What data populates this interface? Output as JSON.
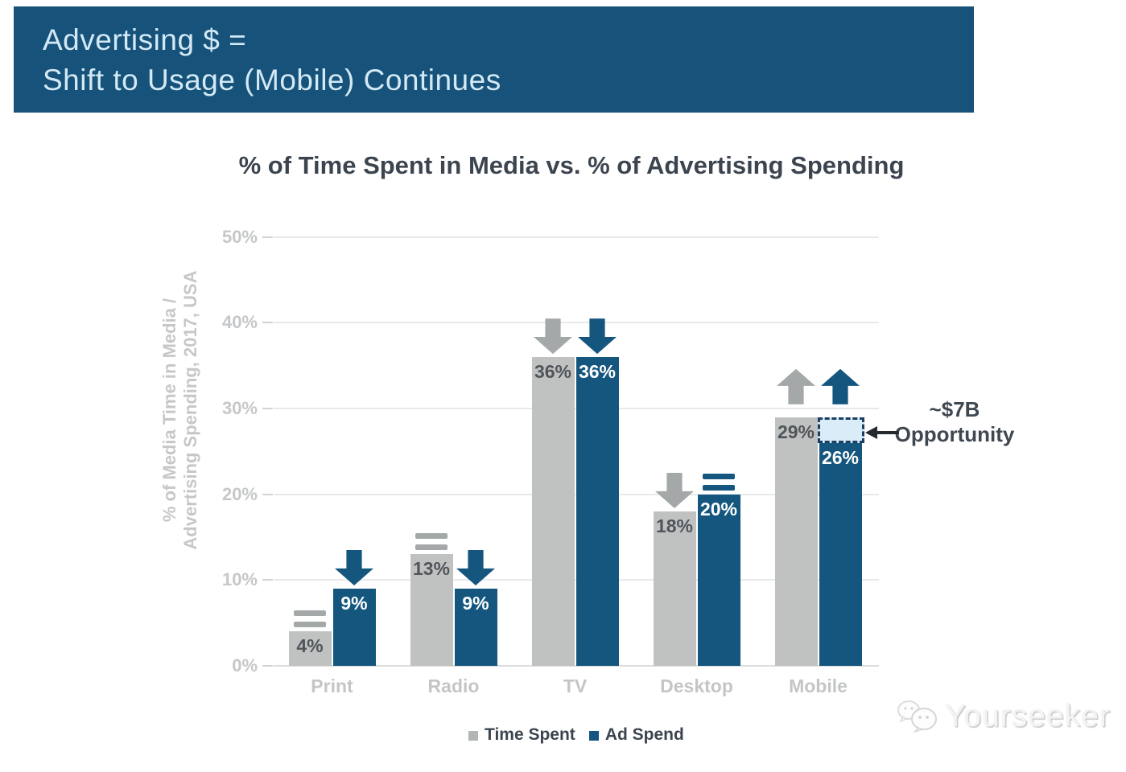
{
  "banner": {
    "line1": "Advertising $ =",
    "line2": "Shift to Usage (Mobile) Continues",
    "bg_color": "#16527a",
    "text_color": "#d3e9f5"
  },
  "chart_data": {
    "type": "bar",
    "title": "% of Time Spent in Media vs. % of Advertising Spending",
    "ylabel_line1": "% of Media Time in Media /",
    "ylabel_line2": "Advertising Spending, 2017, USA",
    "ylim": [
      0,
      50
    ],
    "y_ticks": [
      0,
      10,
      20,
      30,
      40,
      50
    ],
    "y_tick_suffix": "%",
    "grid": "horizontal-only",
    "legend_position": "bottom",
    "categories": [
      "Print",
      "Radio",
      "TV",
      "Desktop",
      "Mobile"
    ],
    "series": [
      {
        "name": "Time Spent",
        "color": "#c0c2c2",
        "label_color": "#50555a",
        "indicator_color": "#a5a8a8",
        "values": [
          4,
          13,
          36,
          18,
          29
        ],
        "value_labels": [
          "4%",
          "13%",
          "36%",
          "18%",
          "29%"
        ],
        "trends": [
          "flat",
          "flat",
          "down",
          "down",
          "up"
        ]
      },
      {
        "name": "Ad Spend",
        "color": "#15567e",
        "label_color": "#ffffff",
        "indicator_color": "#15567e",
        "values": [
          9,
          9,
          36,
          20,
          26
        ],
        "value_labels": [
          "9%",
          "9%",
          "36%",
          "20%",
          "26%"
        ],
        "trends": [
          "down",
          "down",
          "down",
          "flat",
          "up"
        ]
      }
    ],
    "opportunity": {
      "category_index": 4,
      "series_index": 1,
      "from_value": 26,
      "to_value": 29,
      "fill_color": "#d9ecf8",
      "border_color": "#1a3f63",
      "label_line1": "~$7B",
      "label_line2": "Opportunity"
    }
  },
  "legend": [
    {
      "label": "Time Spent",
      "color": "#b2b5b5"
    },
    {
      "label": "Ad Spend",
      "color": "#15567e"
    }
  ],
  "watermark": {
    "text": "Yourseeker"
  }
}
